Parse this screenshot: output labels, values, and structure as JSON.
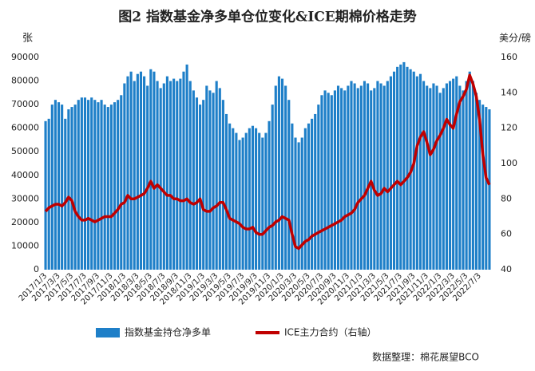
{
  "chart_data": {
    "type": "bar_line",
    "title": "图2 指数基金净多单仓位变化&ICE期棉价格走势",
    "y_label": "张",
    "y2_label": "美分/磅",
    "source": "数据整理：棉花展望BCO",
    "categories": [
      "2017/1/3",
      null,
      null,
      null,
      "2017/3/3",
      null,
      null,
      null,
      "2017/5/3",
      null,
      null,
      null,
      "2017/7/3",
      null,
      null,
      null,
      "2017/9/3",
      null,
      null,
      null,
      "2017/11/3",
      null,
      null,
      null,
      "2018/1/3",
      null,
      null,
      null,
      "2018/3/3",
      null,
      null,
      null,
      "2018/5/3",
      null,
      null,
      null,
      "2018/7/3",
      null,
      null,
      null,
      "2018/9/3",
      null,
      null,
      null,
      "2018/11/3",
      null,
      null,
      null,
      "2019/1/3",
      null,
      null,
      null,
      "2019/3/3",
      null,
      null,
      null,
      "2019/5/3",
      null,
      null,
      null,
      "2019/7/3",
      null,
      null,
      null,
      "2019/9/3",
      null,
      null,
      null,
      "2019/11/3",
      null,
      null,
      null,
      "2020/1/3",
      null,
      null,
      null,
      "2020/3/3",
      null,
      null,
      null,
      "2020/5/3",
      null,
      null,
      null,
      "2020/7/3",
      null,
      null,
      null,
      "2020/9/3",
      null,
      null,
      null,
      "2020/11/3",
      null,
      null,
      null,
      "2021/1/3",
      null,
      null,
      null,
      "2021/3/3",
      null,
      null,
      null,
      "2021/5/3",
      null,
      null,
      null,
      "2021/7/3",
      null,
      null,
      null,
      "2021/9/3",
      null,
      null,
      null,
      "2021/11/3",
      null,
      null,
      null,
      "2022/1/3",
      null,
      null,
      null,
      "2022/3/3",
      null,
      null,
      null,
      "2022/5/3",
      null,
      null,
      null,
      "2022/7/3",
      null,
      null,
      null
    ],
    "series": [
      {
        "name": "指数基金持仓净多单",
        "color": "#1e7fc8",
        "type": "bar",
        "axis": "y",
        "values": [
          63000,
          64000,
          70000,
          72000,
          71000,
          70000,
          64000,
          68000,
          69000,
          70000,
          72000,
          73000,
          73000,
          72000,
          73000,
          72000,
          71000,
          72000,
          70000,
          69000,
          70000,
          71000,
          72000,
          74000,
          79000,
          82000,
          84000,
          80000,
          83000,
          84000,
          82000,
          78000,
          85000,
          84000,
          80000,
          77000,
          79000,
          82000,
          80000,
          81000,
          80000,
          81000,
          84000,
          87000,
          80000,
          76000,
          73000,
          70000,
          72000,
          78000,
          76000,
          75000,
          80000,
          77000,
          72000,
          66000,
          62000,
          60000,
          58000,
          55000,
          56000,
          58000,
          60000,
          61000,
          60000,
          58000,
          56000,
          58000,
          63000,
          70000,
          78000,
          82000,
          81000,
          78000,
          72000,
          62000,
          56000,
          54000,
          56000,
          60000,
          62000,
          64000,
          66000,
          70000,
          74000,
          76000,
          75000,
          74000,
          76000,
          78000,
          77000,
          76000,
          78000,
          80000,
          79000,
          77000,
          78000,
          80000,
          79000,
          76000,
          77000,
          80000,
          79000,
          78000,
          80000,
          82000,
          84000,
          86000,
          87000,
          88000,
          86000,
          85000,
          84000,
          82000,
          83000,
          80000,
          78000,
          77000,
          79000,
          78000,
          75000,
          77000,
          79000,
          80000,
          81000,
          82000,
          78000,
          76000,
          80000,
          84000,
          80000,
          75000,
          72000,
          70000,
          69000,
          68000
        ]
      },
      {
        "name": "ICE主力合约（右轴）",
        "color": "#c00000",
        "type": "line",
        "axis": "y2",
        "values": [
          73,
          75,
          76,
          77,
          77,
          76,
          78,
          81,
          79,
          73,
          70,
          68,
          68,
          69,
          68,
          67,
          68,
          69,
          70,
          70,
          70,
          72,
          74,
          77,
          78,
          82,
          80,
          80,
          81,
          82,
          83,
          86,
          90,
          86,
          88,
          86,
          84,
          82,
          82,
          80,
          80,
          79,
          79,
          80,
          78,
          77,
          78,
          80,
          74,
          73,
          73,
          75,
          76,
          78,
          78,
          74,
          69,
          68,
          67,
          66,
          64,
          63,
          63,
          64,
          61,
          60,
          60,
          62,
          64,
          65,
          67,
          68,
          70,
          69,
          68,
          60,
          53,
          52,
          54,
          56,
          57,
          59,
          60,
          61,
          62,
          63,
          64,
          65,
          66,
          67,
          68,
          70,
          71,
          72,
          74,
          78,
          80,
          82,
          86,
          90,
          85,
          82,
          83,
          86,
          84,
          86,
          88,
          90,
          88,
          90,
          92,
          95,
          100,
          110,
          115,
          118,
          112,
          105,
          108,
          113,
          116,
          120,
          125,
          122,
          120,
          128,
          135,
          138,
          142,
          150,
          145,
          138,
          125,
          105,
          92,
          88
        ]
      }
    ],
    "ylim": [
      0,
      90000
    ],
    "yticks": [
      0,
      10000,
      20000,
      30000,
      40000,
      50000,
      60000,
      70000,
      80000,
      90000
    ],
    "y2lim": [
      40,
      160
    ],
    "y2ticks": [
      40,
      60,
      80,
      100,
      120,
      140,
      160
    ],
    "grid": false,
    "legend": "bottom"
  }
}
